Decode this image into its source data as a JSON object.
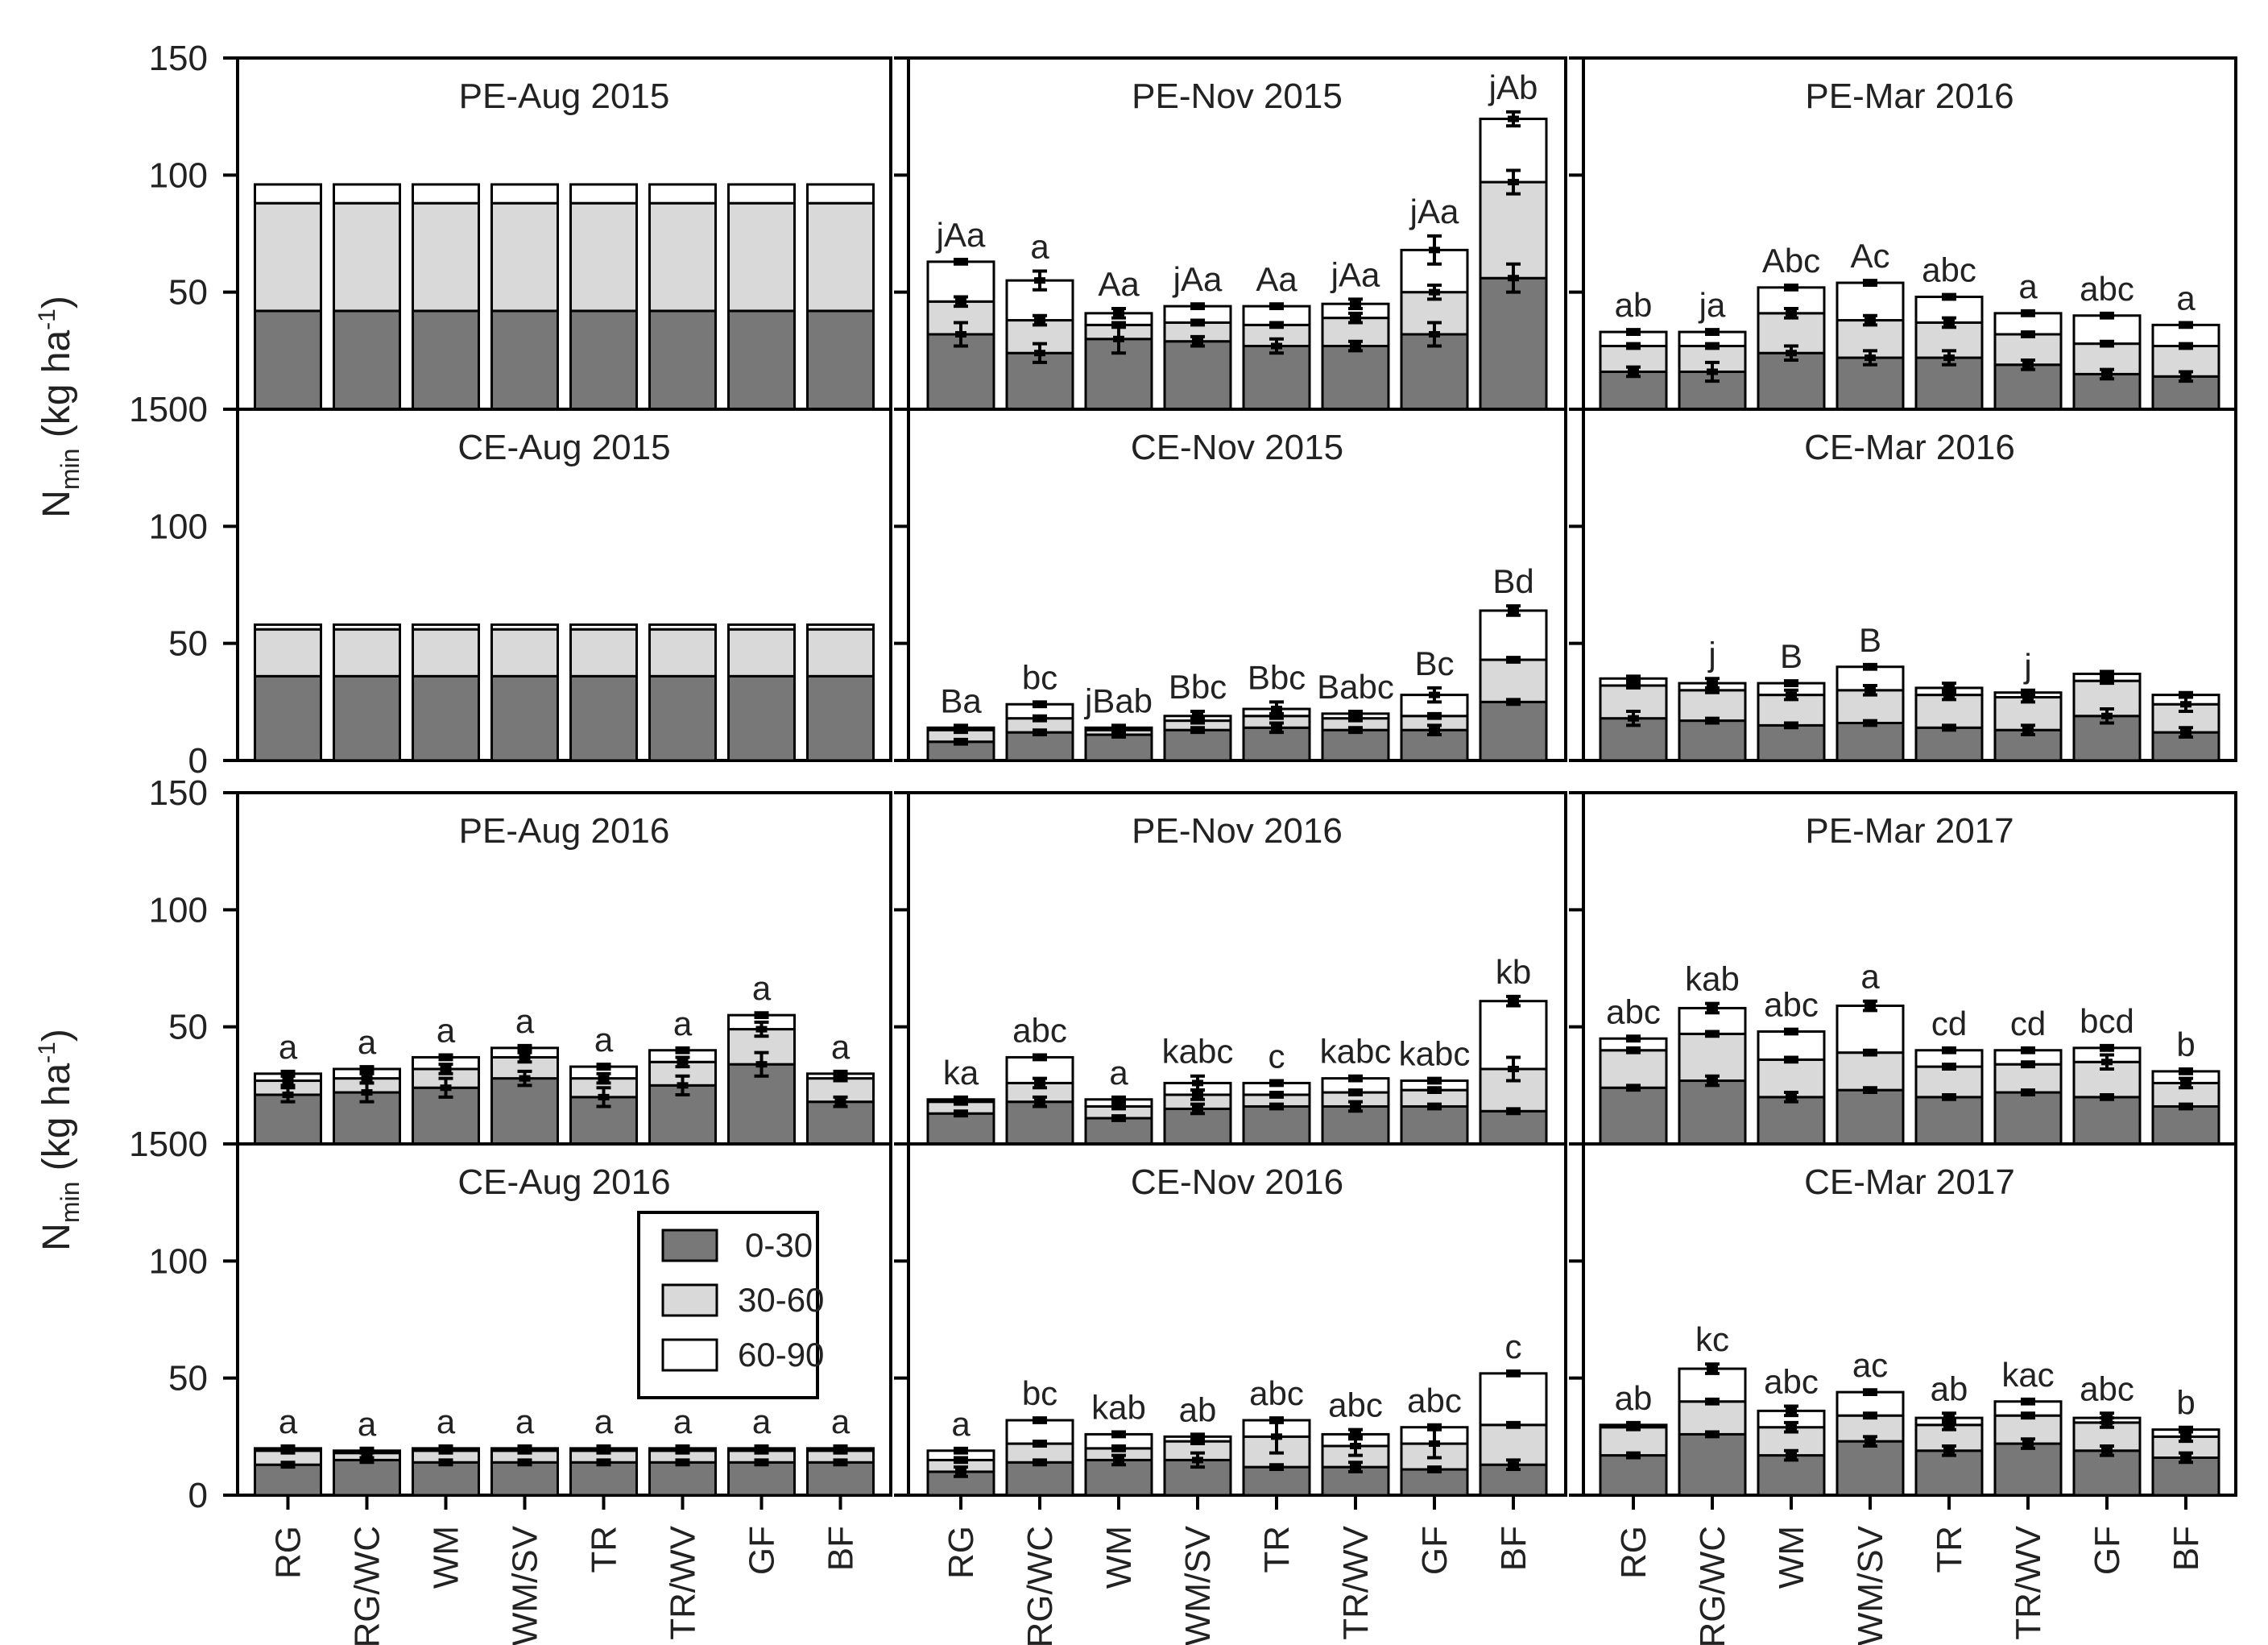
{
  "chart_data": {
    "type": "bar",
    "stacked": true,
    "ylabel": {
      "main": "N",
      "sub": "min",
      "unit": " (kg ha",
      "sup": "-1",
      "close": ")"
    },
    "ylim": [
      0,
      150
    ],
    "yticks": [
      0,
      50,
      100,
      150
    ],
    "ytick_labels_top": [
      "",
      "50",
      "100",
      "150"
    ],
    "ytick_labels_bottom": [
      "0",
      "50",
      "100",
      ""
    ],
    "panel_edge_label": "1500",
    "categories": [
      "RG",
      "RG/WC",
      "WM",
      "WM/SV",
      "TR",
      "TR/WV",
      "GF",
      "BF"
    ],
    "legend": [
      {
        "name": "0-30",
        "color": "#787878"
      },
      {
        "name": "30-60",
        "color": "#d9d9d9"
      },
      {
        "name": "60-90",
        "color": "#ffffff"
      }
    ],
    "panels": [
      {
        "title": "PE-Aug 2015",
        "row": 0,
        "col": 0,
        "series": {
          "0-30": [
            42,
            42,
            42,
            42,
            42,
            42,
            42,
            42
          ],
          "30-60": [
            46,
            46,
            46,
            46,
            46,
            46,
            46,
            46
          ],
          "60-90": [
            8,
            8,
            8,
            8,
            8,
            8,
            8,
            8
          ]
        },
        "errors": null,
        "letters": [
          "",
          "",
          "",
          "",
          "",
          "",
          "",
          ""
        ]
      },
      {
        "title": "PE-Nov 2015",
        "row": 0,
        "col": 1,
        "series": {
          "0-30": [
            32,
            24,
            30,
            29,
            27,
            27,
            32,
            56
          ],
          "30-60": [
            14,
            14,
            6,
            8,
            9,
            12,
            18,
            41
          ],
          "60-90": [
            17,
            17,
            5,
            7,
            8,
            6,
            18,
            27
          ]
        },
        "errors": {
          "0-30": [
            5,
            4,
            6,
            2,
            3,
            2,
            5,
            6
          ],
          "30-60": [
            2,
            2,
            1,
            1,
            1,
            2,
            3,
            5
          ],
          "60-90": [
            1,
            4,
            2,
            1,
            1,
            2,
            6,
            3
          ]
        },
        "letters": [
          "jAa",
          "a",
          "Aa",
          "jAa",
          "Aa",
          "jAa",
          "jAa",
          "jAb"
        ]
      },
      {
        "title": "PE-Mar 2016",
        "row": 0,
        "col": 2,
        "series": {
          "0-30": [
            16,
            16,
            24,
            22,
            22,
            19,
            15,
            14
          ],
          "30-60": [
            11,
            11,
            17,
            16,
            15,
            13,
            13,
            13
          ],
          "60-90": [
            6,
            6,
            11,
            16,
            11,
            9,
            12,
            9
          ]
        },
        "errors": {
          "0-30": [
            2,
            4,
            3,
            3,
            3,
            2,
            2,
            2
          ],
          "30-60": [
            1,
            1,
            2,
            2,
            2,
            1,
            1,
            1
          ],
          "60-90": [
            1,
            1,
            1,
            1,
            1,
            1,
            1,
            1
          ]
        },
        "letters": [
          "ab",
          "ja",
          "Abc",
          "Ac",
          "abc",
          "a",
          "abc",
          "a"
        ]
      },
      {
        "title": "CE-Aug 2015",
        "row": 1,
        "col": 0,
        "series": {
          "0-30": [
            36,
            36,
            36,
            36,
            36,
            36,
            36,
            36
          ],
          "30-60": [
            20,
            20,
            20,
            20,
            20,
            20,
            20,
            20
          ],
          "60-90": [
            2,
            2,
            2,
            2,
            2,
            2,
            2,
            2
          ]
        },
        "errors": null,
        "letters": [
          "",
          "",
          "",
          "",
          "",
          "",
          "",
          ""
        ]
      },
      {
        "title": "CE-Nov 2015",
        "row": 1,
        "col": 1,
        "series": {
          "0-30": [
            8,
            12,
            11,
            13,
            14,
            13,
            13,
            25
          ],
          "30-60": [
            5,
            6,
            2,
            4,
            5,
            5,
            6,
            18
          ],
          "60-90": [
            1,
            6,
            1,
            2,
            3,
            2,
            9,
            21
          ]
        },
        "errors": {
          "0-30": [
            1,
            1,
            1,
            1,
            2,
            1,
            2,
            1
          ],
          "30-60": [
            1,
            1,
            1,
            1,
            1,
            1,
            1,
            1
          ],
          "60-90": [
            1,
            1,
            1,
            2,
            3,
            1,
            3,
            2
          ]
        },
        "letters": [
          "Ba",
          "bc",
          "jBab",
          "Bbc",
          "Bbc",
          "Babc",
          "Bc",
          "Bd"
        ]
      },
      {
        "title": "CE-Mar 2016",
        "row": 1,
        "col": 2,
        "series": {
          "0-30": [
            18,
            17,
            15,
            16,
            14,
            13,
            19,
            12
          ],
          "30-60": [
            14,
            13,
            13,
            14,
            14,
            14,
            15,
            12
          ],
          "60-90": [
            3,
            3,
            5,
            10,
            3,
            2,
            3,
            4
          ]
        },
        "errors": {
          "0-30": [
            3,
            1,
            1,
            1,
            1,
            2,
            3,
            2
          ],
          "30-60": [
            1,
            1,
            2,
            2,
            2,
            2,
            1,
            3
          ],
          "60-90": [
            1,
            2,
            1,
            1,
            2,
            1,
            1,
            1
          ]
        },
        "letters": [
          "",
          "j",
          "B",
          "B",
          "",
          "j",
          "",
          ""
        ]
      },
      {
        "title": "PE-Aug 2016",
        "row": 2,
        "col": 0,
        "series": {
          "0-30": [
            21,
            22,
            24,
            28,
            20,
            25,
            34,
            18
          ],
          "30-60": [
            6,
            6,
            8,
            9,
            8,
            10,
            15,
            10
          ],
          "60-90": [
            3,
            4,
            5,
            4,
            5,
            5,
            6,
            2
          ]
        },
        "errors": {
          "0-30": [
            3,
            4,
            4,
            3,
            4,
            4,
            5,
            2
          ],
          "30-60": [
            2,
            2,
            2,
            2,
            2,
            2,
            3,
            1
          ],
          "60-90": [
            1,
            1,
            1,
            1,
            1,
            1,
            1,
            1
          ]
        },
        "letters": [
          "a",
          "a",
          "a",
          "a",
          "a",
          "a",
          "a",
          "a"
        ]
      },
      {
        "title": "PE-Nov 2016",
        "row": 2,
        "col": 1,
        "series": {
          "0-30": [
            13,
            18,
            11,
            15,
            16,
            16,
            16,
            14
          ],
          "30-60": [
            5,
            8,
            5,
            6,
            5,
            6,
            7,
            18
          ],
          "60-90": [
            1,
            11,
            3,
            5,
            5,
            6,
            4,
            29
          ]
        },
        "errors": {
          "0-30": [
            1,
            2,
            1,
            2,
            1,
            2,
            1,
            1
          ],
          "30-60": [
            1,
            2,
            1,
            2,
            1,
            1,
            1,
            5
          ],
          "60-90": [
            1,
            1,
            1,
            3,
            1,
            1,
            1,
            2
          ]
        },
        "letters": [
          "ka",
          "abc",
          "a",
          "kabc",
          "c",
          "kabc",
          "kabc",
          "kb"
        ]
      },
      {
        "title": "PE-Mar 2017",
        "row": 2,
        "col": 2,
        "series": {
          "0-30": [
            24,
            27,
            20,
            23,
            20,
            22,
            20,
            16
          ],
          "30-60": [
            16,
            20,
            16,
            16,
            13,
            12,
            15,
            10
          ],
          "60-90": [
            5,
            11,
            12,
            20,
            7,
            6,
            6,
            5
          ]
        },
        "errors": {
          "0-30": [
            1,
            2,
            2,
            1,
            1,
            1,
            1,
            1
          ],
          "30-60": [
            1,
            1,
            1,
            1,
            1,
            1,
            3,
            2
          ],
          "60-90": [
            1,
            2,
            1,
            2,
            1,
            1,
            1,
            1
          ]
        },
        "letters": [
          "abc",
          "kab",
          "abc",
          "a",
          "cd",
          "cd",
          "bcd",
          "b"
        ]
      },
      {
        "title": "CE-Aug 2016",
        "row": 3,
        "col": 0,
        "series": {
          "0-30": [
            13,
            15,
            14,
            14,
            14,
            14,
            14,
            14
          ],
          "30-60": [
            6,
            3,
            5,
            5,
            5,
            5,
            5,
            5
          ],
          "60-90": [
            1,
            1,
            1,
            1,
            1,
            1,
            1,
            1
          ]
        },
        "errors": {
          "0-30": [
            1,
            1,
            1,
            1,
            1,
            1,
            1,
            1
          ],
          "30-60": [
            1,
            2,
            1,
            1,
            1,
            1,
            1,
            1
          ],
          "60-90": [
            1,
            1,
            1,
            1,
            1,
            1,
            1,
            1
          ]
        },
        "letters": [
          "a",
          "a",
          "a",
          "a",
          "a",
          "a",
          "a",
          "a"
        ]
      },
      {
        "title": "CE-Nov 2016",
        "row": 3,
        "col": 1,
        "series": {
          "0-30": [
            10,
            14,
            15,
            15,
            12,
            12,
            11,
            13
          ],
          "30-60": [
            5,
            8,
            5,
            8,
            13,
            9,
            11,
            17
          ],
          "60-90": [
            4,
            10,
            6,
            2,
            7,
            5,
            7,
            22
          ]
        },
        "errors": {
          "0-30": [
            2,
            1,
            2,
            3,
            1,
            2,
            1,
            2
          ],
          "30-60": [
            1,
            1,
            1,
            1,
            7,
            4,
            6,
            1
          ],
          "60-90": [
            1,
            1,
            1,
            1,
            1,
            2,
            1,
            1
          ]
        },
        "letters": [
          "a",
          "bc",
          "kab",
          "ab",
          "abc",
          "abc",
          "abc",
          "c"
        ]
      },
      {
        "title": "CE-Mar 2017",
        "row": 3,
        "col": 2,
        "series": {
          "0-30": [
            17,
            26,
            17,
            23,
            19,
            22,
            19,
            16
          ],
          "30-60": [
            12,
            14,
            12,
            11,
            11,
            12,
            12,
            9
          ],
          "60-90": [
            1,
            14,
            7,
            10,
            3,
            6,
            2,
            3
          ]
        },
        "errors": {
          "0-30": [
            1,
            1,
            2,
            2,
            2,
            2,
            2,
            2
          ],
          "30-60": [
            1,
            1,
            2,
            1,
            2,
            1,
            2,
            2
          ],
          "60-90": [
            1,
            2,
            2,
            1,
            2,
            1,
            2,
            1
          ]
        },
        "letters": [
          "ab",
          "kc",
          "abc",
          "ac",
          "ab",
          "kac",
          "abc",
          "b"
        ]
      }
    ]
  }
}
